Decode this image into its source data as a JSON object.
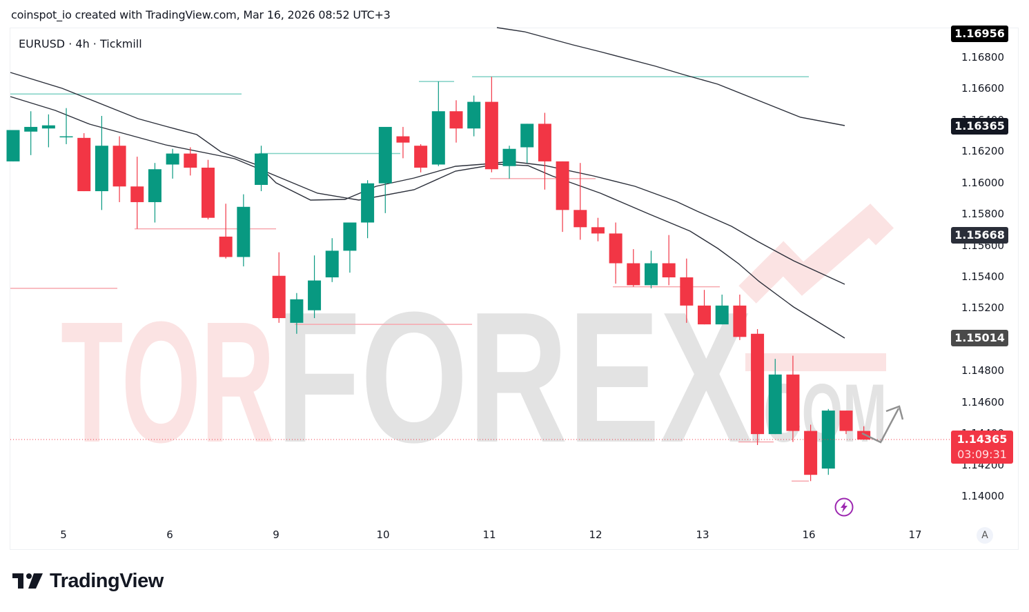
{
  "caption": "coinspot_io created with TradingView.com, Mar 16, 2026 08:52 UTC+3",
  "symbol_line": "EURUSD · 4h · Tickmill",
  "footer_logo_text": "TradingView",
  "auto_scale_label": "A",
  "watermark": {
    "part1": "TOR",
    "part2": "FOREX",
    "part3": ".COM"
  },
  "colors": {
    "up": "#089981",
    "down": "#f23645",
    "ma": "#2a2e39",
    "resistance": "#7fd1c4",
    "support": "#f7a6ad",
    "tag_dark": "#131722",
    "current": "#f23645",
    "bolt": "#9c27b0"
  },
  "price_axis": {
    "labels": [
      "1.16800",
      "1.16600",
      "1.16400",
      "1.16200",
      "1.16000",
      "1.15800",
      "1.15600",
      "1.15400",
      "1.15200",
      "1.15000",
      "1.14800",
      "1.14600",
      "1.14400",
      "1.14200",
      "1.14000"
    ],
    "tags": [
      {
        "value": "1.16956",
        "bg": "#000000"
      },
      {
        "value": "1.16365",
        "bg": "#131722"
      },
      {
        "value": "1.15668",
        "bg": "#2a2e39"
      },
      {
        "value": "1.15014",
        "bg": "#4a4a4a"
      }
    ],
    "current_price": "1.14365",
    "countdown": "03:09:31"
  },
  "time_axis": {
    "labels": [
      "5",
      "6",
      "9",
      "10",
      "11",
      "12",
      "13",
      "16",
      "17"
    ]
  },
  "chart_data": {
    "type": "candlestick",
    "title": "EURUSD · 4h · Tickmill",
    "xlabel": "",
    "ylabel": "",
    "ylim": [
      1.139,
      1.1715
    ],
    "x_tick_labels": [
      "5",
      "6",
      "9",
      "10",
      "11",
      "12",
      "13",
      "16",
      "17"
    ],
    "y_tick_labels": [
      "1.14000",
      "1.14200",
      "1.14400",
      "1.14600",
      "1.14800",
      "1.15000",
      "1.15200",
      "1.15400",
      "1.15600",
      "1.15800",
      "1.16000",
      "1.16200",
      "1.16400",
      "1.16600",
      "1.16800"
    ],
    "grid": false,
    "candles": [
      {
        "o": 1.1614,
        "h": 1.1634,
        "l": 1.1614,
        "c": 1.1634
      },
      {
        "o": 1.1633,
        "h": 1.1646,
        "l": 1.1618,
        "c": 1.1636
      },
      {
        "o": 1.1635,
        "h": 1.1644,
        "l": 1.1623,
        "c": 1.1637
      },
      {
        "o": 1.163,
        "h": 1.1648,
        "l": 1.1625,
        "c": 1.163
      },
      {
        "o": 1.1629,
        "h": 1.1632,
        "l": 1.1595,
        "c": 1.1595
      },
      {
        "o": 1.1595,
        "h": 1.1643,
        "l": 1.1583,
        "c": 1.1624
      },
      {
        "o": 1.1624,
        "h": 1.163,
        "l": 1.1588,
        "c": 1.1598
      },
      {
        "o": 1.1598,
        "h": 1.1617,
        "l": 1.1571,
        "c": 1.1588
      },
      {
        "o": 1.1588,
        "h": 1.1613,
        "l": 1.1575,
        "c": 1.1609
      },
      {
        "o": 1.1612,
        "h": 1.1622,
        "l": 1.1603,
        "c": 1.1619
      },
      {
        "o": 1.1619,
        "h": 1.1623,
        "l": 1.1605,
        "c": 1.161
      },
      {
        "o": 1.161,
        "h": 1.1615,
        "l": 1.1577,
        "c": 1.1578
      },
      {
        "o": 1.1566,
        "h": 1.1587,
        "l": 1.1552,
        "c": 1.1553
      },
      {
        "o": 1.1553,
        "h": 1.1593,
        "l": 1.1547,
        "c": 1.1585
      },
      {
        "o": 1.1599,
        "h": 1.1624,
        "l": 1.1595,
        "c": 1.1619
      },
      {
        "o": 1.1541,
        "h": 1.1556,
        "l": 1.1511,
        "c": 1.1514
      },
      {
        "o": 1.1511,
        "h": 1.153,
        "l": 1.1504,
        "c": 1.1526
      },
      {
        "o": 1.1519,
        "h": 1.1554,
        "l": 1.1514,
        "c": 1.1538
      },
      {
        "o": 1.154,
        "h": 1.1565,
        "l": 1.1537,
        "c": 1.1557
      },
      {
        "o": 1.1557,
        "h": 1.1567,
        "l": 1.1543,
        "c": 1.1575
      },
      {
        "o": 1.1575,
        "h": 1.1602,
        "l": 1.1565,
        "c": 1.16
      },
      {
        "o": 1.16,
        "h": 1.1629,
        "l": 1.1581,
        "c": 1.1636
      },
      {
        "o": 1.163,
        "h": 1.1636,
        "l": 1.1616,
        "c": 1.1626
      },
      {
        "o": 1.1624,
        "h": 1.1625,
        "l": 1.1607,
        "c": 1.161
      },
      {
        "o": 1.1612,
        "h": 1.1665,
        "l": 1.1611,
        "c": 1.1646
      },
      {
        "o": 1.1646,
        "h": 1.1653,
        "l": 1.1626,
        "c": 1.1635
      },
      {
        "o": 1.1635,
        "h": 1.1656,
        "l": 1.163,
        "c": 1.1652
      },
      {
        "o": 1.1652,
        "h": 1.1668,
        "l": 1.1607,
        "c": 1.1609
      },
      {
        "o": 1.1611,
        "h": 1.1624,
        "l": 1.1603,
        "c": 1.1622
      },
      {
        "o": 1.1623,
        "h": 1.1638,
        "l": 1.1613,
        "c": 1.1638
      },
      {
        "o": 1.1638,
        "h": 1.1645,
        "l": 1.1596,
        "c": 1.1614
      },
      {
        "o": 1.1614,
        "h": 1.1614,
        "l": 1.1569,
        "c": 1.1583
      },
      {
        "o": 1.1583,
        "h": 1.1613,
        "l": 1.1564,
        "c": 1.1572
      },
      {
        "o": 1.1572,
        "h": 1.1578,
        "l": 1.1563,
        "c": 1.1568
      },
      {
        "o": 1.1568,
        "h": 1.1575,
        "l": 1.1536,
        "c": 1.1549
      },
      {
        "o": 1.1549,
        "h": 1.1558,
        "l": 1.1534,
        "c": 1.1535
      },
      {
        "o": 1.1535,
        "h": 1.1557,
        "l": 1.1533,
        "c": 1.1549
      },
      {
        "o": 1.1549,
        "h": 1.1567,
        "l": 1.1535,
        "c": 1.154
      },
      {
        "o": 1.154,
        "h": 1.1552,
        "l": 1.1511,
        "c": 1.1522
      },
      {
        "o": 1.1522,
        "h": 1.1532,
        "l": 1.151,
        "c": 1.151
      },
      {
        "o": 1.151,
        "h": 1.1529,
        "l": 1.151,
        "c": 1.1522
      },
      {
        "o": 1.1522,
        "h": 1.1529,
        "l": 1.15,
        "c": 1.1502
      },
      {
        "o": 1.1504,
        "h": 1.1507,
        "l": 1.1433,
        "c": 1.144
      },
      {
        "o": 1.144,
        "h": 1.1488,
        "l": 1.144,
        "c": 1.1478
      },
      {
        "o": 1.1478,
        "h": 1.149,
        "l": 1.1435,
        "c": 1.1442
      },
      {
        "o": 1.1442,
        "h": 1.1446,
        "l": 1.141,
        "c": 1.1414
      },
      {
        "o": 1.1418,
        "h": 1.1456,
        "l": 1.1414,
        "c": 1.1455
      },
      {
        "o": 1.1455,
        "h": 1.1455,
        "l": 1.144,
        "c": 1.1442
      },
      {
        "o": 1.1442,
        "h": 1.1445,
        "l": 1.14365,
        "c": 1.14365
      }
    ],
    "moving_averages": [
      {
        "name": "upper",
        "values_approx": [
          1.169,
          1.1667,
          1.165,
          1.164,
          1.1623,
          1.16,
          1.1578,
          1.1555
        ]
      },
      {
        "name": "middle",
        "values_approx": [
          1.167,
          1.1658,
          1.1645,
          1.1631,
          1.161,
          1.1612,
          1.1615,
          1.1612,
          1.16,
          1.1575,
          1.1555,
          1.1535,
          1.1505
        ]
      },
      {
        "name": "lower",
        "values_approx": [
          1.1643,
          1.1625,
          1.1607,
          1.1584,
          1.159,
          1.1612,
          1.1608,
          1.1592,
          1.1575,
          1.1555,
          1.153,
          1.15
        ]
      }
    ],
    "horizontal_levels": [
      {
        "price": 1.1657,
        "color": "resistance",
        "from_day": "5",
        "to_day": "6"
      },
      {
        "price": 1.1619,
        "color": "resistance",
        "from_day": "9",
        "to_day": "10"
      },
      {
        "price": 1.1665,
        "color": "resistance",
        "from_day": "10",
        "to_day": "11"
      },
      {
        "price": 1.1668,
        "color": "resistance",
        "from_day": "11",
        "to_day": "16"
      },
      {
        "price": 1.1571,
        "color": "support",
        "from_day": "6",
        "to_day": "9"
      },
      {
        "price": 1.1533,
        "color": "support",
        "from_day": "5",
        "to_day": "6"
      },
      {
        "price": 1.151,
        "color": "support",
        "from_day": "9",
        "to_day": "11"
      },
      {
        "price": 1.1603,
        "color": "support",
        "from_day": "11",
        "to_day": "12"
      },
      {
        "price": 1.1534,
        "color": "support",
        "from_day": "12",
        "to_day": "13"
      },
      {
        "price": 1.1435,
        "color": "support",
        "from_day": "13",
        "to_day": "16"
      },
      {
        "price": 1.141,
        "color": "support",
        "from_day": "16",
        "to_day": "16"
      }
    ],
    "annotations": [
      "projected path arrow (down then up) after last candle",
      "current price line at 1.14365"
    ]
  }
}
